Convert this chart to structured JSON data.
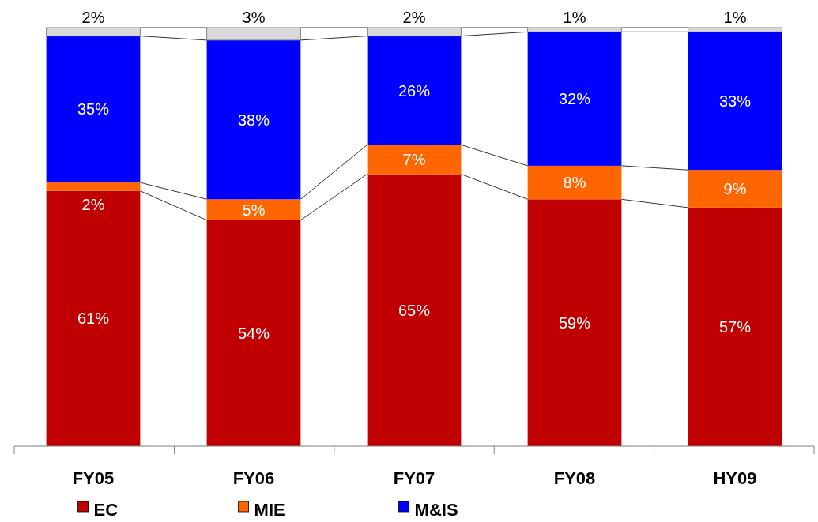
{
  "chart_data": {
    "type": "bar",
    "stacked": true,
    "legend": "bottom",
    "categories": [
      "FY05",
      "FY06",
      "FY07",
      "FY08",
      "HY09"
    ],
    "series": [
      {
        "name": "EC",
        "color": "#c00000",
        "values": [
          61,
          54,
          65,
          59,
          57
        ],
        "value_labels": [
          "61%",
          "54%",
          "65%",
          "59%",
          "57%"
        ]
      },
      {
        "name": "MIE",
        "color": "#ff6600",
        "values": [
          2,
          5,
          7,
          8,
          9
        ],
        "value_labels": [
          "2%",
          "5%",
          "7%",
          "8%",
          "9%"
        ]
      },
      {
        "name": "M&IS",
        "color": "#0000ff",
        "values": [
          35,
          38,
          26,
          32,
          33
        ],
        "value_labels": [
          "35%",
          "38%",
          "26%",
          "32%",
          "33%"
        ]
      },
      {
        "color": "#d9d9d9",
        "values": [
          2,
          3,
          2,
          1,
          1
        ],
        "value_labels": [
          "2%",
          "3%",
          "2%",
          "1%",
          "1%"
        ]
      }
    ]
  }
}
